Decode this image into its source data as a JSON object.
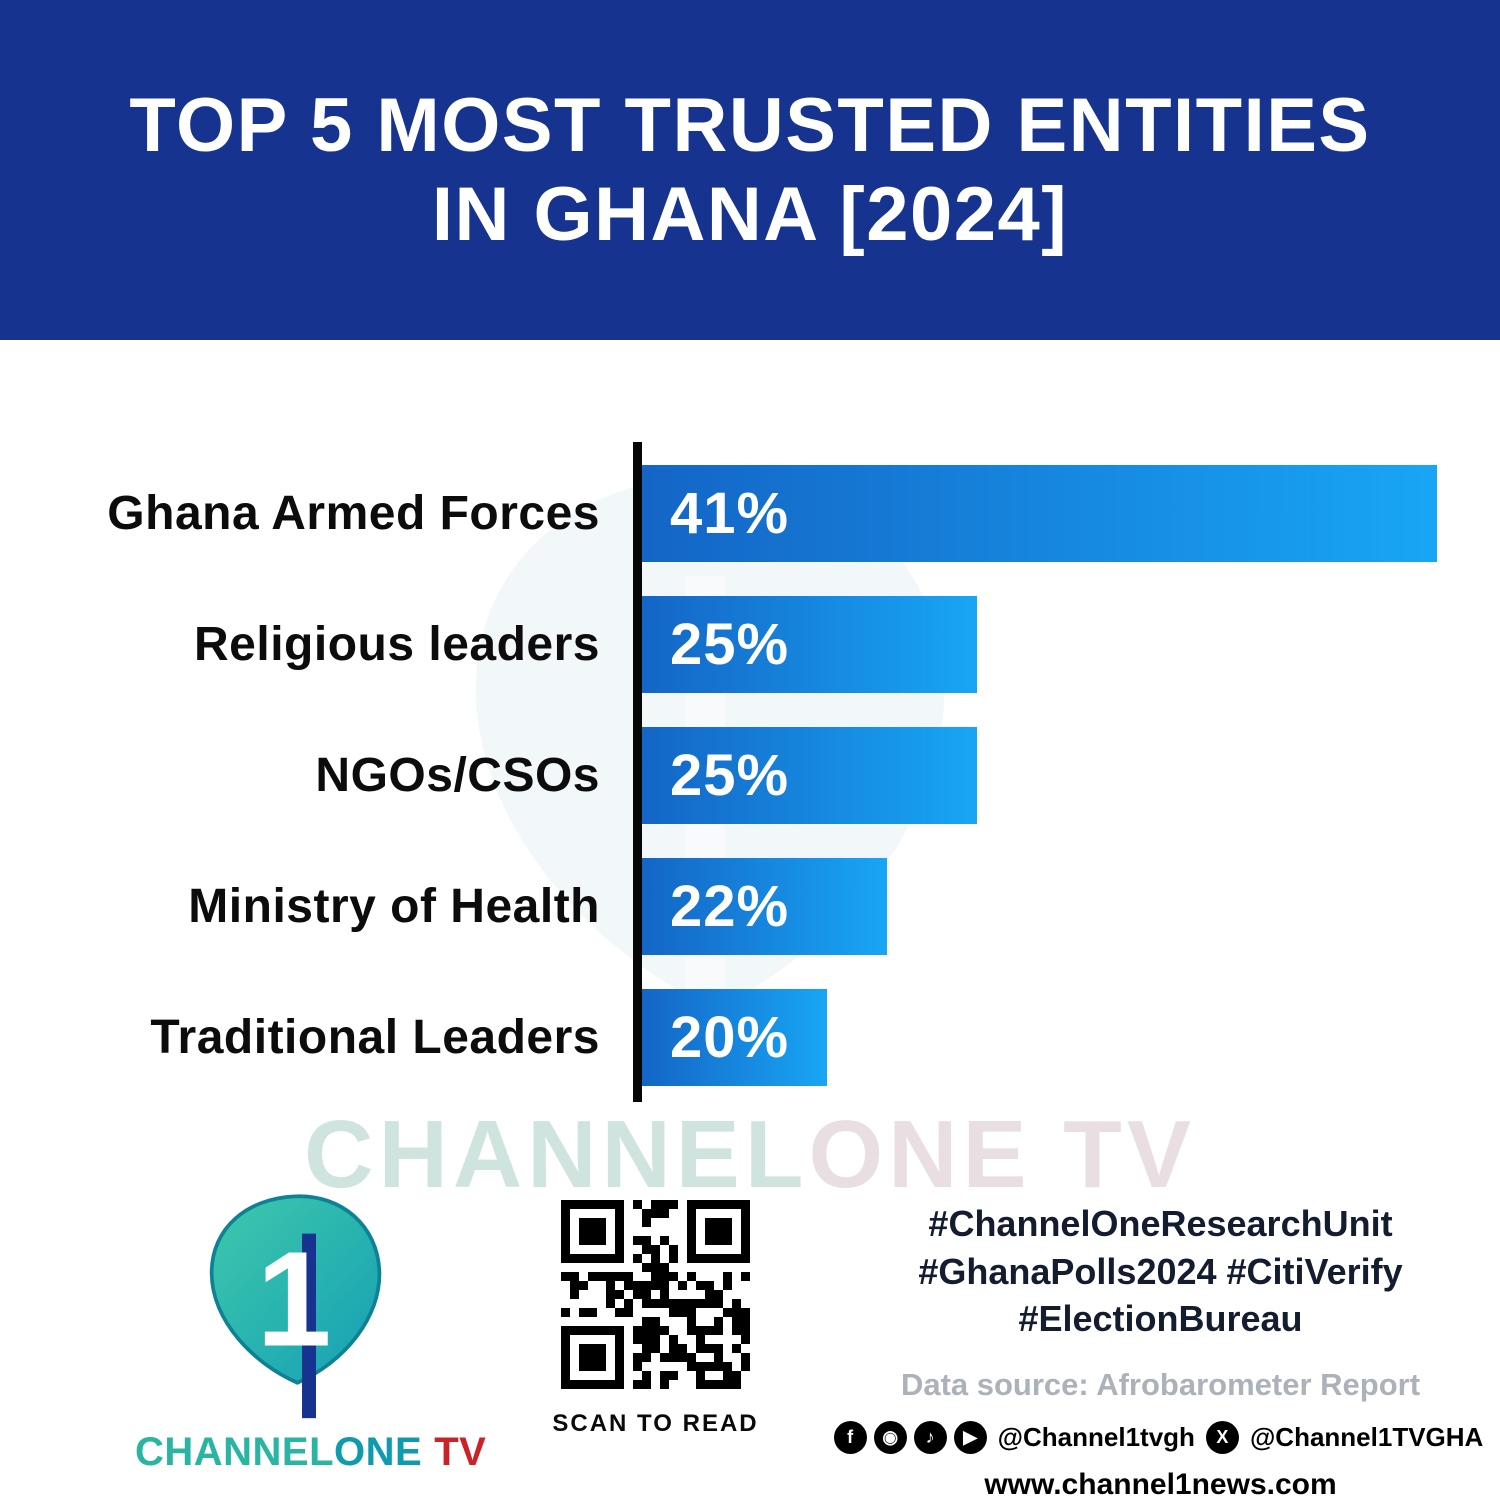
{
  "header": {
    "title_line1": "TOP 5 MOST TRUSTED ENTITIES",
    "title_line2": "IN GHANA [2024]"
  },
  "chart_data": {
    "type": "bar",
    "orientation": "horizontal",
    "title": "Top 5 Most Trusted Entities in Ghana [2024]",
    "categories": [
      "Ghana Armed Forces",
      "Religious leaders",
      "NGOs/CSOs",
      "Ministry of Health",
      "Traditional Leaders"
    ],
    "values": [
      41,
      25,
      25,
      22,
      20
    ],
    "value_labels": [
      "41%",
      "25%",
      "25%",
      "22%",
      "20%"
    ],
    "unit": "%",
    "xlim": [
      0,
      45
    ],
    "grid": false,
    "legend": false,
    "axis_color": "#000000",
    "bar_gradient": [
      "#1465C6",
      "#18A6F4"
    ],
    "display_widths_pct": [
      92.7,
      39,
      39,
      28.6,
      21.6
    ]
  },
  "watermark": {
    "part1": "CHANNEL",
    "part2": "ONE TV"
  },
  "footer": {
    "logo": {
      "mark_digit": "1",
      "text_channel": "CHANNEL",
      "text_one": "ONE",
      "text_tv": "TV"
    },
    "qr": {
      "label": "SCAN TO READ"
    },
    "hashtags": {
      "line1": "#ChannelOneResearchUnit",
      "line2": "#GhanaPolls2024 #CitiVerify",
      "line3": "#ElectionBureau"
    },
    "data_source": "Data source: Afrobarometer Report",
    "social": {
      "icons": [
        {
          "name": "facebook",
          "glyph": "f"
        },
        {
          "name": "instagram",
          "glyph": "◉"
        },
        {
          "name": "tiktok",
          "glyph": "♪"
        },
        {
          "name": "youtube",
          "glyph": "▶"
        },
        {
          "name": "x",
          "glyph": "X"
        }
      ],
      "handle_primary": "@Channel1tvgh",
      "handle_x": "@Channel1TVGHA"
    },
    "website": "www.channel1news.com"
  },
  "colors": {
    "header_bg": "#16338F",
    "bar_gradient_start": "#1465C6",
    "bar_gradient_end": "#18A6F4",
    "axis": "#000000",
    "logo_teal": "#2AB5A3",
    "logo_dark_teal": "#0F9BAE",
    "logo_red": "#CD2128"
  }
}
